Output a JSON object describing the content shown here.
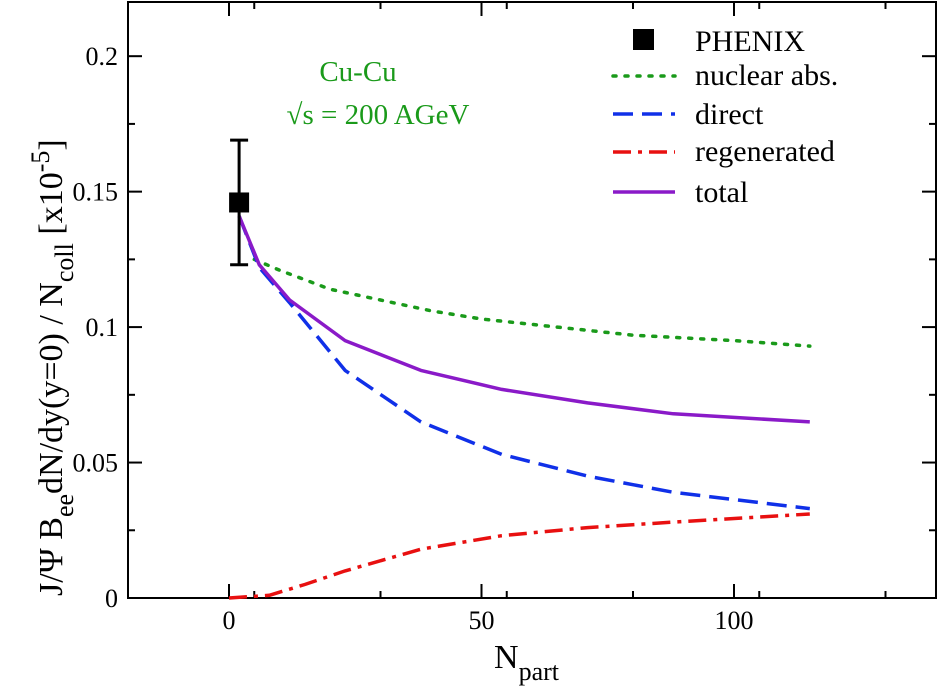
{
  "chart_data": {
    "type": "line",
    "annotation": {
      "line1": "Cu-Cu",
      "line2": "√s = 200 AGeV"
    },
    "xlim": [
      -20,
      140
    ],
    "ylim": [
      0,
      0.22
    ],
    "x_ticks": [
      0,
      50,
      100
    ],
    "x_tick_labels": [
      "0",
      "50",
      "100"
    ],
    "y_ticks": [
      0,
      0.05,
      0.1,
      0.15,
      0.2
    ],
    "y_tick_labels": [
      "0",
      "0.05",
      "0.1",
      "0.15",
      "0.2"
    ],
    "xlabel": {
      "main": "N",
      "sub": "part"
    },
    "ylabel": {
      "part1": "J/Ψ B",
      "sub1": "ee",
      "part2": "dN/dy(y=0) / N",
      "sub2": "coll",
      "part3": " [x10",
      "sup": "-5",
      "part4": "]"
    },
    "phenix": {
      "name": "PHENIX",
      "x": 2,
      "y": 0.146,
      "err_low": 0.123,
      "err_high": 0.169,
      "color": "#000000"
    },
    "series": [
      {
        "name": "nuclear abs.",
        "color": "#1a9a1a",
        "style": "dotted",
        "x": [
          5,
          10,
          20,
          30,
          40,
          50,
          60,
          70,
          80,
          90,
          100,
          115
        ],
        "y": [
          0.125,
          0.121,
          0.114,
          0.11,
          0.106,
          0.103,
          0.101,
          0.099,
          0.097,
          0.096,
          0.095,
          0.093
        ]
      },
      {
        "name": "direct",
        "color": "#1030e8",
        "style": "dashed",
        "x": [
          2,
          6,
          12,
          23,
          38,
          54,
          71,
          88,
          115
        ],
        "y": [
          0.141,
          0.122,
          0.109,
          0.084,
          0.065,
          0.053,
          0.045,
          0.039,
          0.033
        ]
      },
      {
        "name": "regenerated",
        "color": "#e81010",
        "style": "dashdot",
        "x": [
          0,
          8,
          15,
          23,
          38,
          54,
          71,
          88,
          115
        ],
        "y": [
          0.0,
          0.001,
          0.005,
          0.01,
          0.018,
          0.023,
          0.026,
          0.028,
          0.031
        ]
      },
      {
        "name": "total",
        "color": "#8a1ac8",
        "style": "solid",
        "x": [
          2,
          6,
          12,
          23,
          38,
          54,
          71,
          88,
          115
        ],
        "y": [
          0.141,
          0.123,
          0.11,
          0.095,
          0.084,
          0.077,
          0.072,
          0.068,
          0.065
        ]
      }
    ]
  }
}
